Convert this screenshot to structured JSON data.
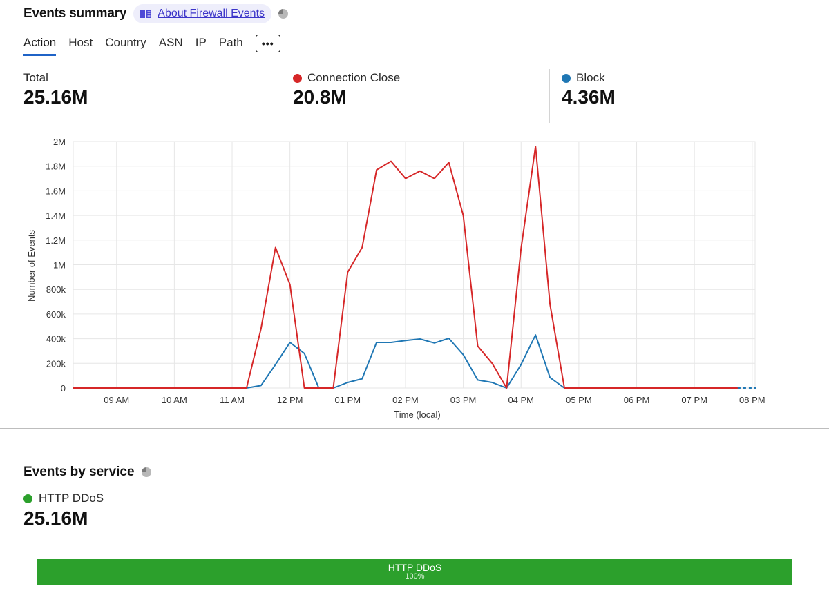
{
  "header": {
    "title": "Events summary",
    "doc_link_label": "About Firewall Events"
  },
  "tabs": [
    {
      "label": "Action",
      "active": true
    },
    {
      "label": "Host"
    },
    {
      "label": "Country"
    },
    {
      "label": "ASN"
    },
    {
      "label": "IP"
    },
    {
      "label": "Path"
    }
  ],
  "more_button_label": "•••",
  "metrics": {
    "total": {
      "label": "Total",
      "value": "25.16M"
    },
    "connection_close": {
      "label": "Connection Close",
      "value": "20.8M",
      "color": "#d62728"
    },
    "block": {
      "label": "Block",
      "value": "4.36M",
      "color": "#1f77b4"
    }
  },
  "chart_data": {
    "type": "line",
    "xlabel": "Time (local)",
    "ylabel": "Number of Events",
    "ylim": [
      0,
      2000000
    ],
    "y_ticks": [
      0,
      200000,
      400000,
      600000,
      800000,
      1000000,
      1200000,
      1400000,
      1600000,
      1800000,
      2000000
    ],
    "y_tick_labels": [
      "0",
      "200k",
      "400k",
      "600k",
      "800k",
      "1M",
      "1.2M",
      "1.4M",
      "1.6M",
      "1.8M",
      "2M"
    ],
    "x_ticks": [
      "09 AM",
      "10 AM",
      "11 AM",
      "12 PM",
      "01 PM",
      "02 PM",
      "03 PM",
      "04 PM",
      "05 PM",
      "06 PM",
      "07 PM",
      "08 PM"
    ],
    "x_tick_hours": [
      9,
      10,
      11,
      12,
      13,
      14,
      15,
      16,
      17,
      18,
      19,
      20
    ],
    "grid": true,
    "series": [
      {
        "name": "Connection Close",
        "color": "#d62728",
        "points": [
          [
            8.25,
            0
          ],
          [
            11.25,
            0
          ],
          [
            11.5,
            480000
          ],
          [
            11.75,
            1140000
          ],
          [
            12.0,
            840000
          ],
          [
            12.25,
            0
          ],
          [
            12.5,
            0
          ],
          [
            12.75,
            0
          ],
          [
            13.0,
            940000
          ],
          [
            13.25,
            1140000
          ],
          [
            13.5,
            1770000
          ],
          [
            13.75,
            1840000
          ],
          [
            14.0,
            1700000
          ],
          [
            14.25,
            1760000
          ],
          [
            14.5,
            1700000
          ],
          [
            14.75,
            1830000
          ],
          [
            15.0,
            1400000
          ],
          [
            15.25,
            340000
          ],
          [
            15.5,
            200000
          ],
          [
            15.75,
            0
          ],
          [
            16.0,
            1130000
          ],
          [
            16.25,
            1960000
          ],
          [
            16.5,
            680000
          ],
          [
            16.75,
            0
          ],
          [
            19.75,
            0
          ]
        ]
      },
      {
        "name": "Block",
        "color": "#1f77b4",
        "points": [
          [
            8.25,
            0
          ],
          [
            11.25,
            0
          ],
          [
            11.5,
            20000
          ],
          [
            11.75,
            190000
          ],
          [
            12.0,
            370000
          ],
          [
            12.25,
            280000
          ],
          [
            12.5,
            0
          ],
          [
            12.75,
            0
          ],
          [
            13.0,
            45000
          ],
          [
            13.25,
            75000
          ],
          [
            13.5,
            370000
          ],
          [
            13.75,
            370000
          ],
          [
            14.0,
            385000
          ],
          [
            14.25,
            398000
          ],
          [
            14.5,
            365000
          ],
          [
            14.75,
            403000
          ],
          [
            15.0,
            270000
          ],
          [
            15.25,
            65000
          ],
          [
            15.5,
            45000
          ],
          [
            15.75,
            0
          ],
          [
            16.0,
            190000
          ],
          [
            16.25,
            430000
          ],
          [
            16.5,
            85000
          ],
          [
            16.75,
            0
          ],
          [
            19.75,
            0
          ]
        ]
      }
    ]
  },
  "service": {
    "title": "Events by service",
    "legend_label": "HTTP DDoS",
    "legend_color": "#2ca02c",
    "value": "25.16M",
    "bar_label": "HTTP DDoS",
    "bar_percent": "100%",
    "bar_fraction": 1.0
  }
}
